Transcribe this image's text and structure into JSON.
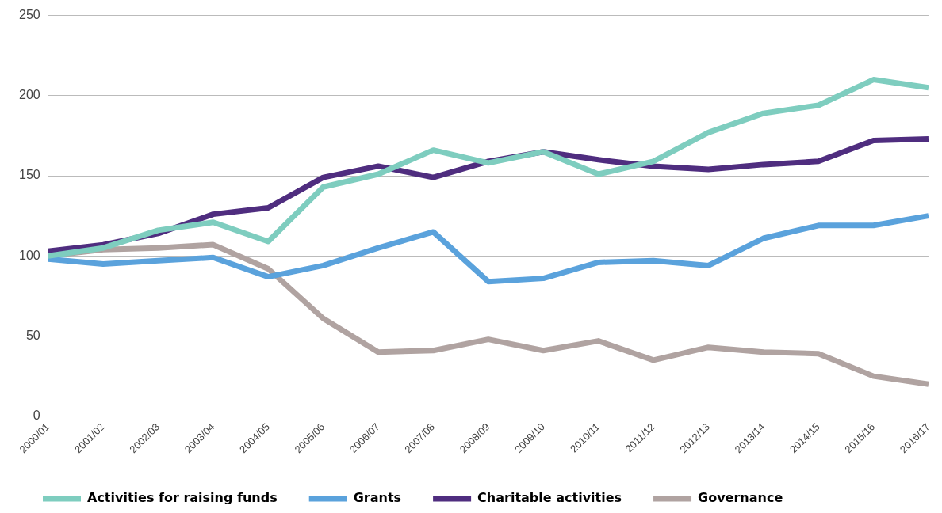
{
  "chart_data": {
    "type": "line",
    "categories": [
      "2000/01",
      "2001/02",
      "2002/03",
      "2003/04",
      "2004/05",
      "2005/06",
      "2006/07",
      "2007/08",
      "2008/09",
      "2009/10",
      "2010/11",
      "2011/12",
      "2012/13",
      "2013/14",
      "2014/15",
      "2015/16",
      "2016/17"
    ],
    "series": [
      {
        "name": "Activities for raising funds",
        "color": "#7ecdbf",
        "values": [
          100,
          105,
          116,
          121,
          109,
          143,
          151,
          166,
          158,
          165,
          151,
          159,
          177,
          189,
          194,
          210,
          205
        ]
      },
      {
        "name": "Grants",
        "color": "#5aa2dc",
        "values": [
          98,
          95,
          97,
          99,
          87,
          94,
          105,
          115,
          84,
          86,
          96,
          97,
          94,
          111,
          119,
          119,
          125
        ]
      },
      {
        "name": "Charitable activities",
        "color": "#4f2d7f",
        "values": [
          103,
          107,
          114,
          126,
          130,
          149,
          156,
          149,
          159,
          165,
          160,
          156,
          154,
          157,
          159,
          172,
          173
        ]
      },
      {
        "name": "Governance",
        "color": "#b0a3a1",
        "values": [
          100,
          104,
          105,
          107,
          92,
          61,
          40,
          41,
          48,
          41,
          47,
          35,
          43,
          40,
          39,
          25,
          20
        ]
      }
    ],
    "ylim": [
      0,
      250
    ],
    "yticks": [
      0,
      50,
      100,
      150,
      200,
      250
    ],
    "grid": "y",
    "legend": "bottom",
    "marker": "none",
    "line_style": "solid"
  }
}
